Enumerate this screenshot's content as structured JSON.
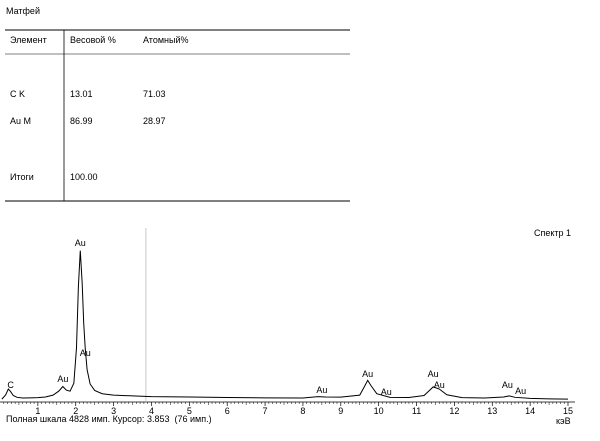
{
  "header": {
    "title": "Матфей"
  },
  "table": {
    "columns": [
      "Элемент",
      "Весовой %",
      "Атомный%"
    ],
    "rows": [
      [
        "C K",
        "13.01",
        "71.03"
      ],
      [
        "Au M",
        "86.99",
        "28.97"
      ]
    ],
    "total": [
      "Итоги",
      "100.00"
    ]
  },
  "footer": [
    "Полная шкала",
    "имп. Курсор:",
    "(76 имп.)"
  ],
  "chart_data": {
    "type": "line",
    "title": "Спектр 1",
    "x_label": "кэВ",
    "x": [
      0.05,
      0.15,
      0.22,
      0.28,
      0.35,
      0.45,
      0.6,
      0.8,
      1.0,
      1.2,
      1.4,
      1.55,
      1.66,
      1.75,
      1.85,
      1.95,
      2.02,
      2.07,
      2.12,
      2.17,
      2.21,
      2.25,
      2.3,
      2.38,
      2.5,
      2.7,
      3.0,
      3.5,
      4.0,
      5.0,
      6.0,
      7.0,
      8.0,
      8.4,
      8.6,
      9.0,
      9.5,
      9.62,
      9.71,
      9.8,
      9.95,
      10.3,
      10.8,
      11.2,
      11.35,
      11.44,
      11.6,
      11.8,
      12.2,
      12.8,
      13.3,
      13.45,
      13.6,
      14.0,
      14.5,
      15.0
    ],
    "series": [
      {
        "name": "Спектр 1",
        "color": "#000000",
        "values": [
          80,
          200,
          360,
          290,
          180,
          130,
          110,
          115,
          120,
          140,
          190,
          300,
          430,
          330,
          300,
          520,
          1500,
          3200,
          4200,
          3300,
          2200,
          1500,
          900,
          500,
          320,
          230,
          190,
          170,
          150,
          140,
          125,
          115,
          110,
          150,
          140,
          135,
          190,
          420,
          600,
          450,
          230,
          130,
          125,
          180,
          330,
          420,
          360,
          200,
          120,
          110,
          140,
          170,
          130,
          100,
          85,
          80
        ]
      }
    ],
    "xlim": [
      0,
      15
    ],
    "xticks": [
      1,
      2,
      3,
      4,
      5,
      6,
      7,
      8,
      9,
      10,
      11,
      12,
      13,
      14,
      15
    ],
    "ylim": [
      0,
      4828
    ],
    "cursor": 3.853,
    "annotations": [
      {
        "text": "C",
        "x": 0.28,
        "y": 388
      },
      {
        "text": "Au",
        "x": 1.66,
        "y": 555
      },
      {
        "text": "Au",
        "x": 2.12,
        "y": 4330
      },
      {
        "text": "Au",
        "x": 2.25,
        "y": 1276
      },
      {
        "text": "Au",
        "x": 8.5,
        "y": 250
      },
      {
        "text": "Au",
        "x": 9.71,
        "y": 694
      },
      {
        "text": "Au",
        "x": 10.2,
        "y": 194
      },
      {
        "text": "Au",
        "x": 11.44,
        "y": 694
      },
      {
        "text": "Au",
        "x": 11.6,
        "y": 388
      },
      {
        "text": "Au",
        "x": 13.4,
        "y": 388
      },
      {
        "text": "Au",
        "x": 13.75,
        "y": 222
      }
    ]
  }
}
